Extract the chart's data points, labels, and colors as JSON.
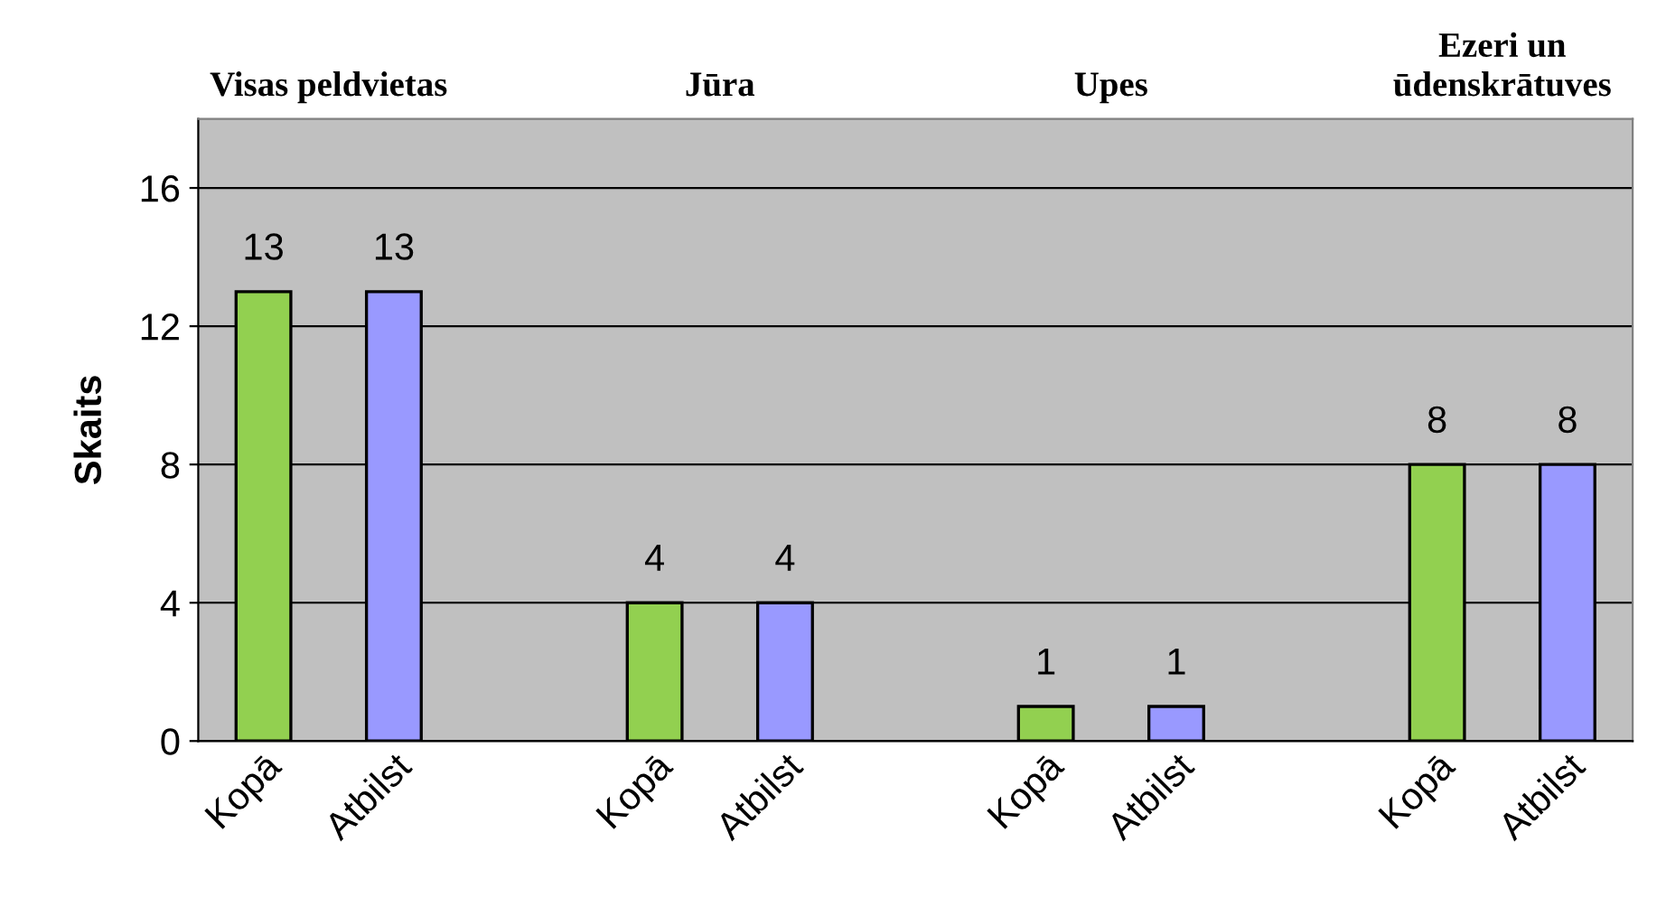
{
  "chart_data": {
    "type": "bar",
    "ylabel": "Skaits",
    "categories": [
      "Kopā",
      "Atbilst",
      null,
      "Kopā",
      "Atbilst",
      null,
      "Kopā",
      "Atbilst",
      null,
      "Kopā",
      "Atbilst"
    ],
    "values": [
      13,
      13,
      null,
      4,
      4,
      null,
      1,
      1,
      null,
      8,
      8
    ],
    "colors": [
      "#92d050",
      "#9999ff",
      null,
      "#92d050",
      "#9999ff",
      null,
      "#92d050",
      "#9999ff",
      null,
      "#92d050",
      "#9999ff"
    ],
    "annotations": [
      "Visas peldvietas",
      "Jūra",
      "Upes",
      "Ezeri un\nūdenskrātuves"
    ],
    "ylim": [
      0,
      18
    ],
    "yticks": [
      0,
      4,
      8,
      12,
      16
    ],
    "grid": "y",
    "data_labels": true
  }
}
